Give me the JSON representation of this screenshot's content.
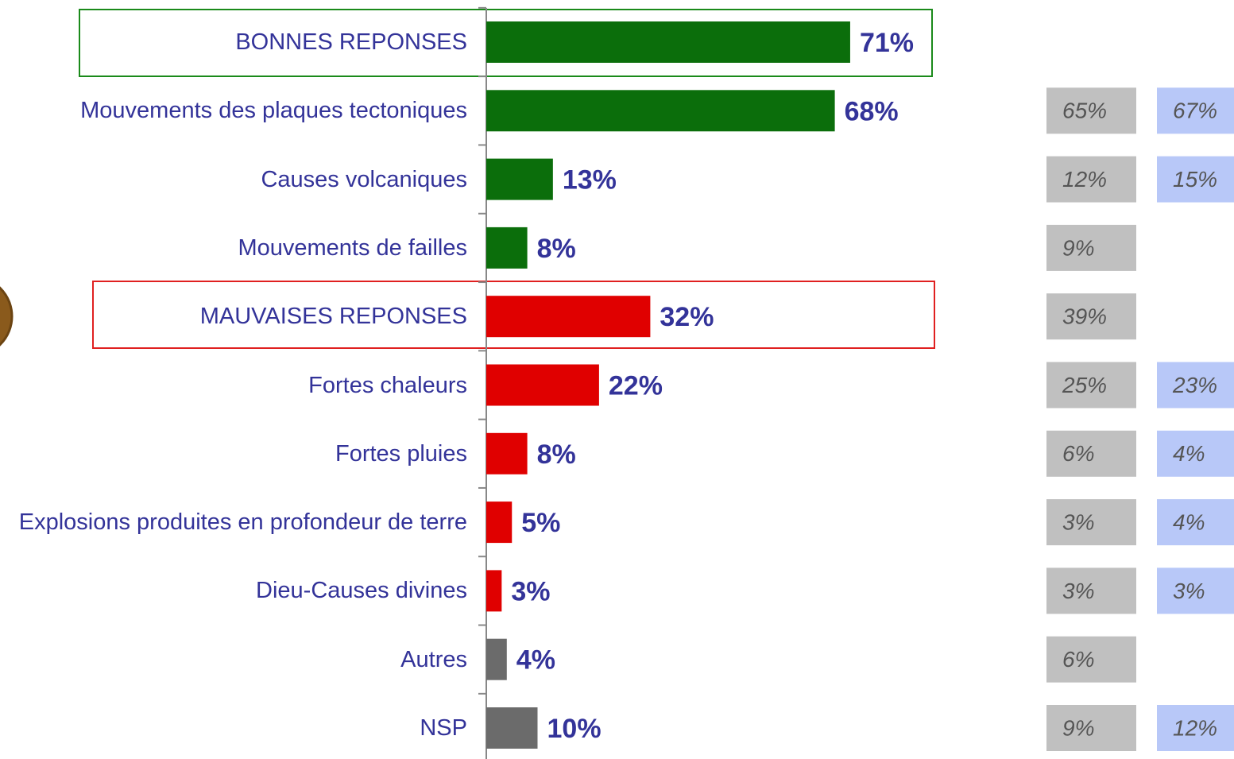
{
  "chart_data": {
    "type": "bar",
    "orientation": "horizontal",
    "categories": [
      "BONNES REPONSES",
      "Mouvements des plaques tectoniques",
      "Causes volcaniques",
      "Mouvements de failles",
      "MAUVAISES REPONSES",
      "Fortes chaleurs",
      "Fortes pluies",
      "Explosions produites en profondeur de terre",
      "Dieu-Causes divines",
      "Autres",
      "NSP"
    ],
    "values": [
      71,
      68,
      13,
      8,
      32,
      22,
      8,
      5,
      3,
      4,
      10
    ],
    "value_labels": [
      "71%",
      "68%",
      "13%",
      "8%",
      "32%",
      "22%",
      "8%",
      "5%",
      "3%",
      "4%",
      "10%"
    ],
    "colors": [
      "#0b6e0b",
      "#0b6e0b",
      "#0b6e0b",
      "#0b6e0b",
      "#e00000",
      "#e00000",
      "#e00000",
      "#e00000",
      "#e00000",
      "#6b6b6b",
      "#6b6b6b"
    ],
    "xlim": [
      0,
      100
    ],
    "comparisons": [
      {
        "color": "#c0c0c0",
        "values": [
          null,
          65,
          12,
          9,
          39,
          25,
          6,
          3,
          3,
          6,
          9
        ],
        "value_labels": [
          null,
          "65%",
          "12%",
          "9%",
          "39%",
          "25%",
          "6%",
          "3%",
          "3%",
          "6%",
          "9%"
        ]
      },
      {
        "color": "#b8c8f8",
        "values": [
          null,
          67,
          15,
          null,
          null,
          23,
          4,
          4,
          3,
          null,
          12
        ],
        "value_labels": [
          null,
          "67%",
          "15%",
          null,
          null,
          "23%",
          "4%",
          "4%",
          "3%",
          null,
          "12%"
        ]
      }
    ]
  }
}
